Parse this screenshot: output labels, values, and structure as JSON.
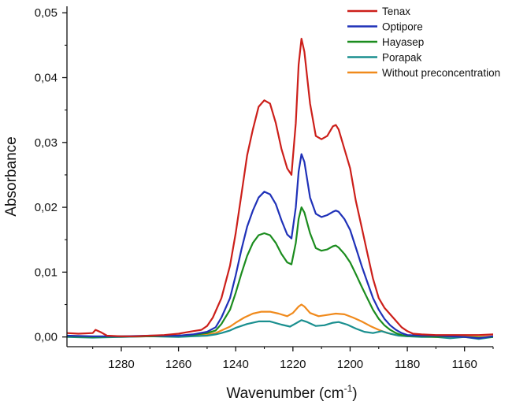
{
  "chart_data": {
    "type": "line",
    "title": "",
    "xlabel": "Wavenumber (cm",
    "xlabel_sup": "-1",
    "xlabel_suffix": ")",
    "ylabel": "Absorbance",
    "xlim": [
      1299,
      1150
    ],
    "ylim": [
      -0.0015,
      0.051
    ],
    "x_reversed": true,
    "xticks": [
      1280,
      1260,
      1240,
      1220,
      1200,
      1180,
      1160
    ],
    "xtick_labels": [
      "1280",
      "1260",
      "1240",
      "1220",
      "1200",
      "1180",
      "1160"
    ],
    "yticks": [
      0,
      0.01,
      0.02,
      0.03,
      0.04,
      0.05
    ],
    "ytick_labels": [
      "0,00",
      "0,01",
      "0,02",
      "0,03",
      "0,04",
      "0,05"
    ],
    "legend_position": "top-right",
    "series": [
      {
        "name": "Tenax",
        "color": "#cc1f1a",
        "x": [
          1299,
          1295,
          1290,
          1289,
          1287,
          1285,
          1280,
          1275,
          1270,
          1265,
          1260,
          1255,
          1252,
          1250,
          1248,
          1245,
          1242,
          1240,
          1238,
          1236,
          1234,
          1232,
          1230,
          1228,
          1226,
          1224,
          1222,
          1220.5,
          1219,
          1218,
          1217,
          1216,
          1214,
          1212,
          1210,
          1208,
          1206,
          1205,
          1204,
          1202,
          1200,
          1198,
          1196,
          1194,
          1192,
          1190,
          1188,
          1186,
          1184,
          1182,
          1180,
          1178,
          1175,
          1170,
          1165,
          1160,
          1155,
          1150
        ],
        "y": [
          0.0006,
          0.0005,
          0.0006,
          0.0011,
          0.0007,
          0.0002,
          0.0001,
          0.0001,
          0.0002,
          0.0003,
          0.0005,
          0.0009,
          0.0011,
          0.0017,
          0.003,
          0.006,
          0.011,
          0.016,
          0.022,
          0.028,
          0.032,
          0.0355,
          0.0365,
          0.036,
          0.033,
          0.029,
          0.026,
          0.025,
          0.033,
          0.042,
          0.046,
          0.044,
          0.036,
          0.031,
          0.0305,
          0.031,
          0.0325,
          0.0327,
          0.032,
          0.029,
          0.026,
          0.021,
          0.017,
          0.013,
          0.009,
          0.006,
          0.0045,
          0.0035,
          0.0025,
          0.0015,
          0.0009,
          0.0005,
          0.0004,
          0.0003,
          0.0003,
          0.0003,
          0.0003,
          0.0004
        ]
      },
      {
        "name": "Optipore",
        "color": "#1f31b8",
        "x": [
          1299,
          1290,
          1280,
          1270,
          1260,
          1255,
          1250,
          1247,
          1245,
          1242,
          1240,
          1238,
          1236,
          1234,
          1232,
          1230,
          1228,
          1226,
          1224,
          1222,
          1220.5,
          1219,
          1218,
          1217,
          1216,
          1214,
          1212,
          1210,
          1208,
          1206,
          1205,
          1204,
          1202,
          1200,
          1198,
          1196,
          1194,
          1192,
          1190,
          1188,
          1186,
          1184,
          1182,
          1180,
          1175,
          1170,
          1165,
          1160,
          1155,
          1150
        ],
        "y": [
          0.0002,
          0.0001,
          0.0001,
          0.0002,
          0.0002,
          0.0004,
          0.0008,
          0.0015,
          0.003,
          0.006,
          0.0095,
          0.0135,
          0.017,
          0.0195,
          0.0215,
          0.0224,
          0.022,
          0.0205,
          0.018,
          0.0158,
          0.0152,
          0.02,
          0.0255,
          0.0282,
          0.027,
          0.0215,
          0.019,
          0.0185,
          0.0188,
          0.0193,
          0.0195,
          0.0193,
          0.0182,
          0.0165,
          0.0138,
          0.011,
          0.0085,
          0.006,
          0.0042,
          0.0028,
          0.0018,
          0.0011,
          0.0006,
          0.0003,
          0.0002,
          0.0002,
          0.0001,
          0.0,
          -0.0002,
          0.0001
        ]
      },
      {
        "name": "Hayasep",
        "color": "#1b8c1e",
        "x": [
          1299,
          1290,
          1280,
          1270,
          1260,
          1255,
          1250,
          1247,
          1245,
          1242,
          1240,
          1238,
          1236,
          1234,
          1232,
          1230,
          1228,
          1226,
          1224,
          1222,
          1220.5,
          1219,
          1218,
          1217,
          1216,
          1214,
          1212,
          1210,
          1208,
          1206,
          1205,
          1204,
          1202,
          1200,
          1198,
          1196,
          1194,
          1192,
          1190,
          1188,
          1186,
          1184,
          1182,
          1180,
          1175,
          1170,
          1165,
          1160,
          1155,
          1150
        ],
        "y": [
          0.0001,
          0.0,
          0.0001,
          0.0001,
          0.0002,
          0.0003,
          0.0006,
          0.001,
          0.002,
          0.0042,
          0.0068,
          0.0098,
          0.0125,
          0.0145,
          0.0157,
          0.016,
          0.0157,
          0.0145,
          0.0128,
          0.0115,
          0.0112,
          0.0145,
          0.0182,
          0.02,
          0.0192,
          0.016,
          0.0137,
          0.0133,
          0.0135,
          0.014,
          0.0141,
          0.0138,
          0.0128,
          0.0115,
          0.0097,
          0.0078,
          0.006,
          0.0042,
          0.0028,
          0.0018,
          0.0011,
          0.0006,
          0.0003,
          0.0002,
          0.0001,
          0.0,
          0.0001,
          0.0,
          -0.0001,
          0.0
        ]
      },
      {
        "name": "Porapak",
        "color": "#1a8f8f",
        "x": [
          1299,
          1290,
          1280,
          1270,
          1260,
          1255,
          1250,
          1247,
          1245,
          1242,
          1240,
          1236,
          1232,
          1228,
          1224,
          1221,
          1219,
          1217,
          1215,
          1212,
          1209,
          1206,
          1204,
          1201,
          1198,
          1195,
          1192,
          1189,
          1186,
          1183,
          1180,
          1175,
          1170,
          1165,
          1160,
          1155,
          1150
        ],
        "y": [
          0.0,
          -0.0001,
          0.0,
          0.0001,
          0.0,
          0.0001,
          0.0002,
          0.0004,
          0.0006,
          0.001,
          0.0014,
          0.002,
          0.0024,
          0.0024,
          0.0019,
          0.0016,
          0.0021,
          0.0026,
          0.0023,
          0.0017,
          0.0018,
          0.0022,
          0.0023,
          0.0019,
          0.0013,
          0.0008,
          0.0006,
          0.0009,
          0.0005,
          0.0002,
          0.0001,
          0.0,
          0.0,
          -0.0002,
          0.0,
          -0.0003,
          0.0
        ]
      },
      {
        "name": "Without preconcentration",
        "color": "#f08a1c",
        "x": [
          1299,
          1290,
          1280,
          1270,
          1260,
          1255,
          1250,
          1247,
          1245,
          1242,
          1240,
          1237,
          1234,
          1231,
          1228,
          1225,
          1222,
          1220,
          1218,
          1217,
          1216,
          1214,
          1211,
          1208,
          1205,
          1202,
          1199,
          1196,
          1193,
          1190,
          1187,
          1184,
          1180,
          1175,
          1170,
          1165,
          1160,
          1155,
          1150
        ],
        "y": [
          0.0001,
          0.0,
          0.0,
          0.0001,
          0.0002,
          0.0003,
          0.0004,
          0.0006,
          0.001,
          0.0016,
          0.0022,
          0.003,
          0.0036,
          0.0039,
          0.0039,
          0.0036,
          0.0032,
          0.0037,
          0.0047,
          0.005,
          0.0047,
          0.0037,
          0.0032,
          0.0034,
          0.0036,
          0.0035,
          0.003,
          0.0024,
          0.0017,
          0.0011,
          0.0006,
          0.0003,
          0.0001,
          0.0001,
          0.0002,
          0.0,
          0.0001,
          0.0,
          0.0001
        ]
      }
    ]
  }
}
